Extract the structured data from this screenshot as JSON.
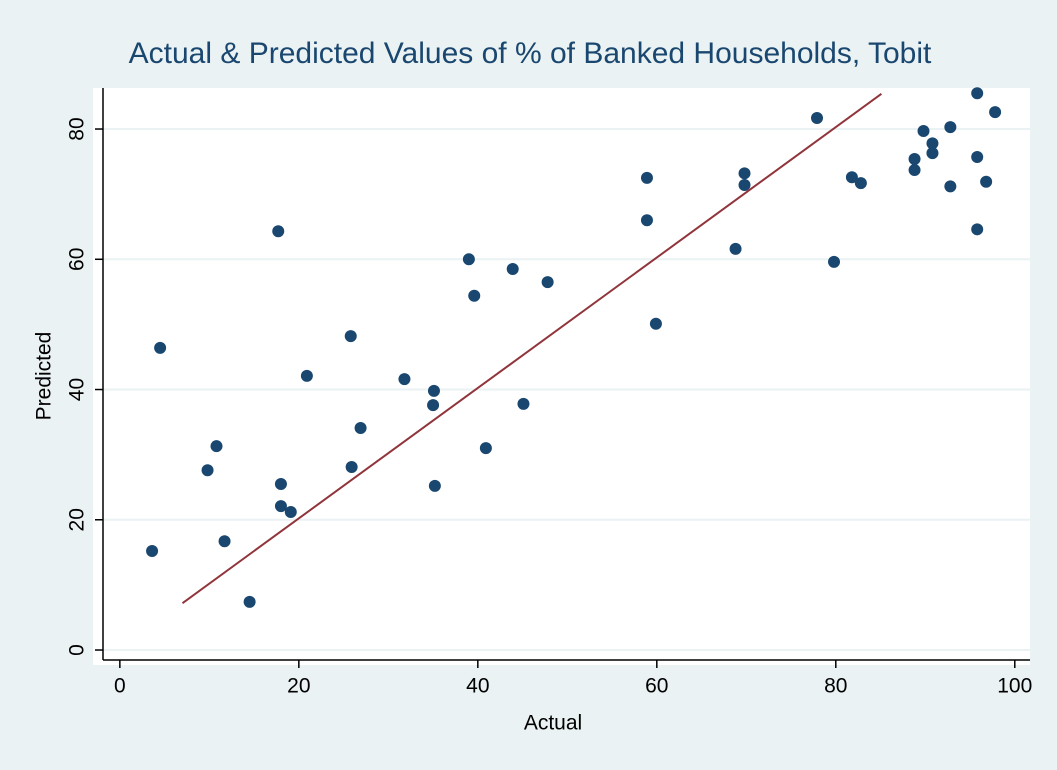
{
  "chart_data": {
    "type": "scatter",
    "title": "Actual & Predicted Values of % of Banked Households, Tobit",
    "x_label": "Actual",
    "y_label": "Predicted",
    "xlim": [
      -3,
      101.7
    ],
    "ylim": [
      -2.3,
      86.3
    ],
    "xticks": [
      0,
      20,
      40,
      60,
      80,
      100
    ],
    "yticks": [
      0,
      20,
      40,
      60,
      80
    ],
    "grid": true,
    "series": [
      {
        "type": "scatter",
        "color": "#1a476f",
        "x": [
          3.6,
          4.5,
          9.8,
          10.8,
          11.7,
          14.5,
          17.7,
          18.0,
          18.0,
          19.1,
          20.9,
          25.8,
          25.9,
          26.9,
          31.8,
          35.1,
          35.0,
          35.2,
          39.0,
          39.6,
          40.9,
          43.9,
          45.1,
          47.8,
          58.9,
          58.9,
          59.9,
          68.8,
          69.8,
          69.8,
          77.9,
          79.8,
          81.8,
          82.8,
          88.8,
          88.8,
          89.8,
          90.8,
          90.8,
          92.8,
          92.8,
          95.8,
          95.8,
          95.8,
          96.8,
          97.8
        ],
        "values": [
          15.2,
          46.4,
          27.6,
          31.3,
          16.7,
          7.4,
          64.3,
          25.5,
          22.1,
          21.2,
          42.1,
          48.2,
          28.1,
          34.1,
          41.6,
          39.8,
          37.6,
          25.2,
          60.0,
          54.4,
          31.0,
          58.5,
          37.8,
          56.5,
          72.5,
          66.0,
          50.1,
          61.6,
          73.2,
          71.4,
          81.7,
          59.6,
          72.6,
          71.7,
          75.4,
          73.7,
          79.7,
          77.8,
          76.3,
          80.3,
          71.2,
          75.7,
          64.6,
          85.5,
          71.9,
          82.6
        ]
      },
      {
        "type": "line",
        "color": "#90353b",
        "x": [
          7.0,
          85.1
        ],
        "values": [
          7.2,
          85.4
        ]
      }
    ]
  }
}
